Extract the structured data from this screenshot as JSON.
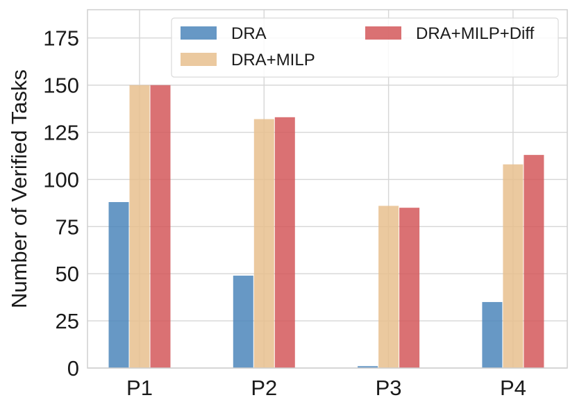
{
  "chart_data": {
    "type": "bar",
    "title": "",
    "xlabel": "",
    "ylabel": "Number of Verified Tasks",
    "categories": [
      "P1",
      "P2",
      "P3",
      "P4"
    ],
    "ylim": [
      0,
      190
    ],
    "yticks": [
      0,
      25,
      50,
      75,
      100,
      125,
      150,
      175
    ],
    "yticklabels": [
      "0",
      "25",
      "50",
      "75",
      "100",
      "125",
      "150",
      "175"
    ],
    "grid": true,
    "legend_position": "top-right",
    "series": [
      {
        "name": "DRA",
        "color": "#4c86bb",
        "values": [
          88,
          49,
          1,
          35
        ]
      },
      {
        "name": "DRA+MILP",
        "color": "#e7bf8e",
        "values": [
          150,
          132,
          86,
          108
        ]
      },
      {
        "name": "DRA+MILP+Diff",
        "color": "#d3585a",
        "values": [
          150,
          133,
          85,
          113
        ]
      }
    ]
  }
}
